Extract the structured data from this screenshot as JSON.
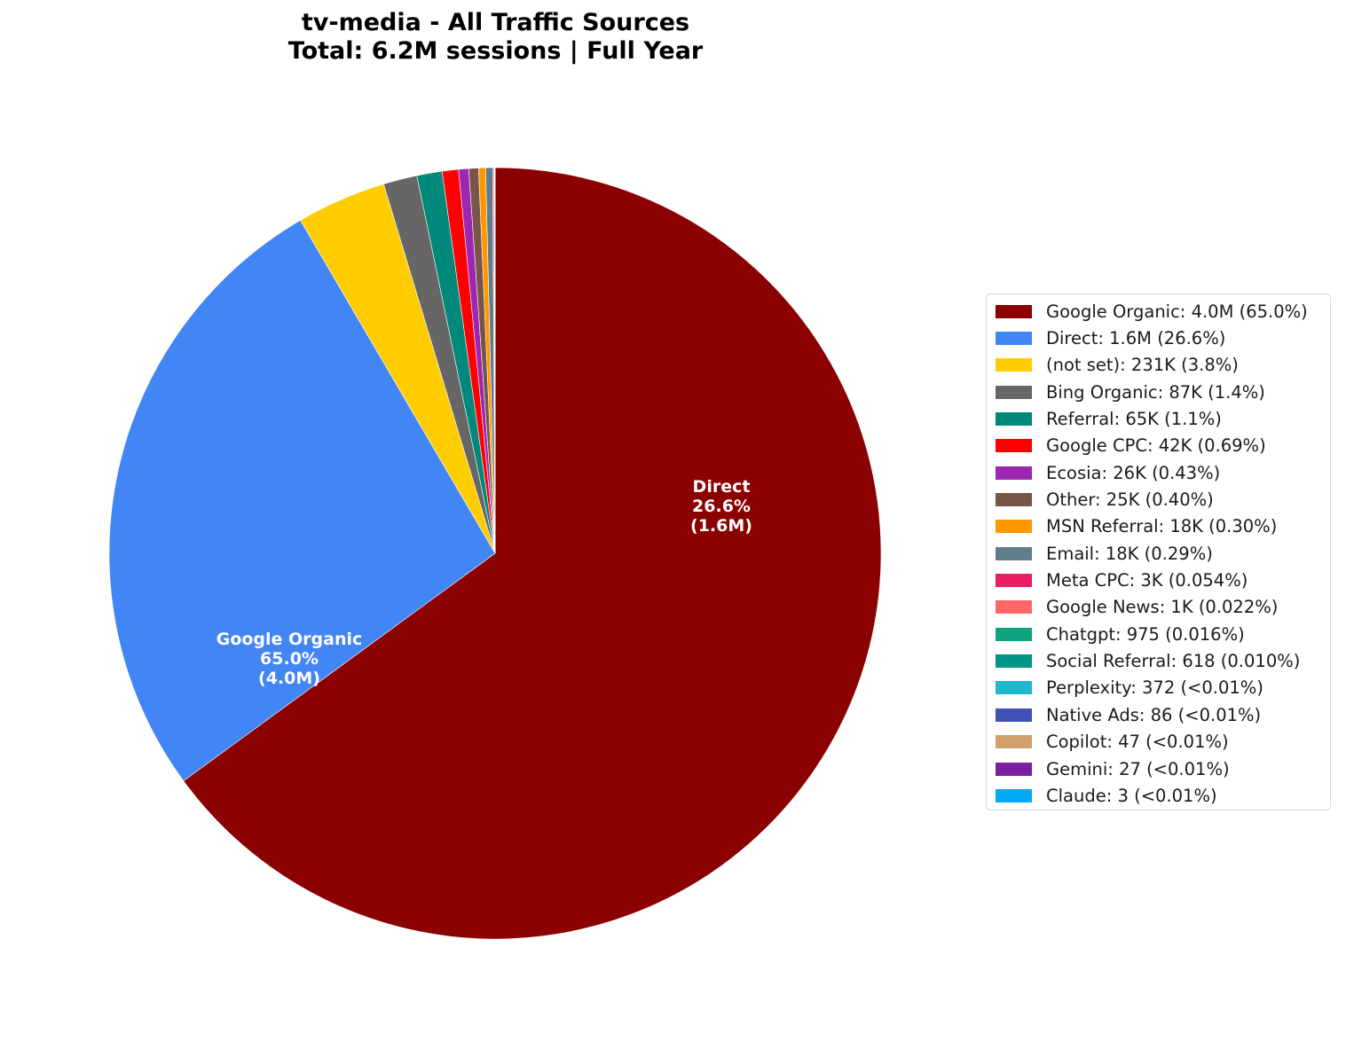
{
  "title": {
    "line1": "tv-media - All Traffic Sources",
    "line2": "Total: 6.2M sessions | Full Year"
  },
  "chart_data": {
    "type": "pie",
    "title": "tv-media - All Traffic Sources",
    "subtitle": "Total: 6.2M sessions | Full Year",
    "total_label": "6.2M sessions",
    "start_angle": "90deg (12 o'clock), clockwise",
    "legend_position": "right",
    "slices": [
      {
        "name": "Google Organic",
        "value_label": "4.0M",
        "value": 4000000,
        "percent": 65.0,
        "percent_label": "65.0%",
        "color": "#8B0000"
      },
      {
        "name": "Direct",
        "value_label": "1.6M",
        "value": 1640000,
        "percent": 26.6,
        "percent_label": "26.6%",
        "color": "#4285F4"
      },
      {
        "name": "(not set)",
        "value_label": "231K",
        "value": 231000,
        "percent": 3.8,
        "percent_label": "3.8%",
        "color": "#FFCC00"
      },
      {
        "name": "Bing Organic",
        "value_label": "87K",
        "value": 87000,
        "percent": 1.4,
        "percent_label": "1.4%",
        "color": "#666666"
      },
      {
        "name": "Referral",
        "value_label": "65K",
        "value": 65000,
        "percent": 1.1,
        "percent_label": "1.1%",
        "color": "#00897B"
      },
      {
        "name": "Google CPC",
        "value_label": "42K",
        "value": 42000,
        "percent": 0.69,
        "percent_label": "0.69%",
        "color": "#FF0000"
      },
      {
        "name": "Ecosia",
        "value_label": "26K",
        "value": 26000,
        "percent": 0.43,
        "percent_label": "0.43%",
        "color": "#9C27B0"
      },
      {
        "name": "Other",
        "value_label": "25K",
        "value": 25000,
        "percent": 0.4,
        "percent_label": "0.40%",
        "color": "#795548"
      },
      {
        "name": "MSN Referral",
        "value_label": "18K",
        "value": 18000,
        "percent": 0.3,
        "percent_label": "0.30%",
        "color": "#FF9800"
      },
      {
        "name": "Email",
        "value_label": "18K",
        "value": 18000,
        "percent": 0.29,
        "percent_label": "0.29%",
        "color": "#607D8B"
      },
      {
        "name": "Meta CPC",
        "value_label": "3K",
        "value": 3000,
        "percent": 0.054,
        "percent_label": "0.054%",
        "color": "#E91E63"
      },
      {
        "name": "Google News",
        "value_label": "1K",
        "value": 1000,
        "percent": 0.022,
        "percent_label": "0.022%",
        "color": "#FF6666"
      },
      {
        "name": "Chatgpt",
        "value_label": "975",
        "value": 975,
        "percent": 0.016,
        "percent_label": "0.016%",
        "color": "#10A37F"
      },
      {
        "name": "Social Referral",
        "value_label": "618",
        "value": 618,
        "percent": 0.01,
        "percent_label": "0.010%",
        "color": "#009688"
      },
      {
        "name": "Perplexity",
        "value_label": "372",
        "value": 372,
        "percent": 0.006,
        "percent_label": "<0.01%",
        "color": "#20B8CD"
      },
      {
        "name": "Native Ads",
        "value_label": "86",
        "value": 86,
        "percent": 0.0014,
        "percent_label": "<0.01%",
        "color": "#3F51B5"
      },
      {
        "name": "Copilot",
        "value_label": "47",
        "value": 47,
        "percent": 0.0008,
        "percent_label": "<0.01%",
        "color": "#D2A06D"
      },
      {
        "name": "Gemini",
        "value_label": "27",
        "value": 27,
        "percent": 0.0004,
        "percent_label": "<0.01%",
        "color": "#7B1FA2"
      },
      {
        "name": "Claude",
        "value_label": "3",
        "value": 3,
        "percent": 5e-05,
        "percent_label": "<0.01%",
        "color": "#03A9F4"
      }
    ],
    "inner_labels": [
      {
        "name": "Google Organic",
        "percent_label": "65.0%",
        "value_label": "(4.0M)"
      },
      {
        "name": "Direct",
        "percent_label": "26.6%",
        "value_label": "(1.6M)"
      }
    ]
  },
  "legend": {
    "items": [
      "Google Organic: 4.0M (65.0%)",
      "Direct: 1.6M (26.6%)",
      "(not set): 231K (3.8%)",
      "Bing Organic: 87K (1.4%)",
      "Referral: 65K (1.1%)",
      "Google CPC: 42K (0.69%)",
      "Ecosia: 26K (0.43%)",
      "Other: 25K (0.40%)",
      "MSN Referral: 18K (0.30%)",
      "Email: 18K (0.29%)",
      "Meta CPC: 3K (0.054%)",
      "Google News: 1K (0.022%)",
      "Chatgpt: 975 (0.016%)",
      "Social Referral: 618 (0.010%)",
      "Perplexity: 372 (<0.01%)",
      "Native Ads: 86 (<0.01%)",
      "Copilot: 47 (<0.01%)",
      "Gemini: 27 (<0.01%)",
      "Claude: 3 (<0.01%)"
    ]
  }
}
